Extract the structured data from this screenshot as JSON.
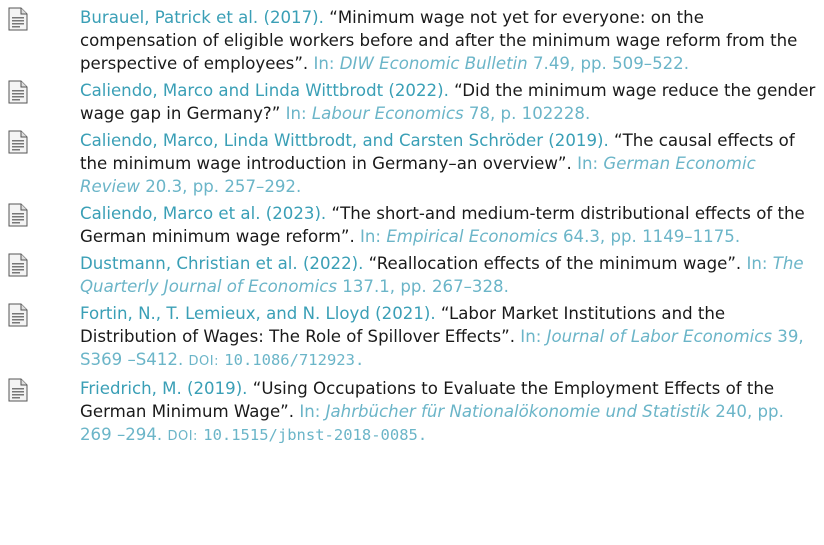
{
  "entries": [
    {
      "author": "Burauel, Patrick et al. (2017).",
      "title": "“Minimum wage not yet for everyone: on the compensation of eligible workers before and after the minimum wage reform from the perspective of employees”.",
      "in": "In:",
      "journal": "DIW Economic Bulletin",
      "details": "7.49, pp. 509–522."
    },
    {
      "author": "Caliendo, Marco and Linda Wittbrodt (2022).",
      "title": "“Did the minimum wage reduce the gender wage gap in Germany?”",
      "in": "In:",
      "journal": "Labour Economics",
      "details": "78, p. 102228."
    },
    {
      "author": "Caliendo, Marco, Linda Wittbrodt, and Carsten Schröder (2019).",
      "title": "“The causal effects of the minimum wage introduction in Germany–an overview”.",
      "in": "In:",
      "journal": "German Economic Review",
      "details": "20.3, pp. 257–292."
    },
    {
      "author": "Caliendo, Marco et al. (2023).",
      "title": "“The short-and medium-term distributional effects of the German minimum wage reform”.",
      "in": "In:",
      "journal": "Empirical Economics",
      "details": "64.3, pp. 1149–1175."
    },
    {
      "author": "Dustmann, Christian et al. (2022).",
      "title": "“Reallocation effects of the minimum wage”.",
      "in": "In:",
      "journal": "The Quarterly Journal of Economics",
      "details": "137.1, pp. 267–328."
    },
    {
      "author": "Fortin, N., T. Lemieux, and N. Lloyd (2021).",
      "title": "“Labor Market Institutions and the Distribution of Wages: The Role of Spillover Effects”.",
      "in": "In:",
      "journal": "Journal of Labor Economics",
      "details": "39, S369 –S412.",
      "doi_label": "DOI:",
      "doi": "10.1086/712923."
    },
    {
      "author": "Friedrich, M. (2019).",
      "title": "“Using Occupations to Evaluate the Employment Effects of the German Minimum Wage”.",
      "in": "In:",
      "journal": "Jahrbücher für Nationalökonomie und Statistik",
      "details": "240, pp. 269 –294.",
      "doi_label": "DOI:",
      "doi": "10.1515/jbnst-2018-0085."
    }
  ]
}
